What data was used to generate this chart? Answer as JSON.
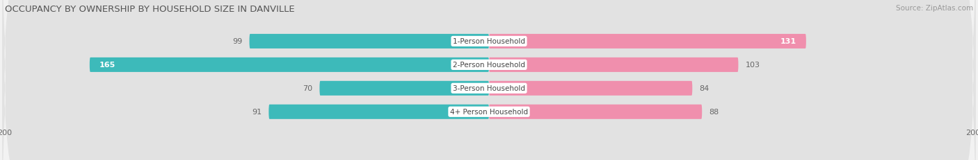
{
  "title": "OCCUPANCY BY OWNERSHIP BY HOUSEHOLD SIZE IN DANVILLE",
  "source": "Source: ZipAtlas.com",
  "categories": [
    "1-Person Household",
    "2-Person Household",
    "3-Person Household",
    "4+ Person Household"
  ],
  "owner_values": [
    99,
    165,
    70,
    91
  ],
  "renter_values": [
    131,
    103,
    84,
    88
  ],
  "owner_color": "#3DBABA",
  "renter_color": "#F08FAD",
  "background_color": "#f2f2f2",
  "bar_bg_color": "#e2e2e2",
  "max_val": 200,
  "title_fontsize": 9.5,
  "axis_fontsize": 8,
  "label_fontsize": 7.5,
  "bar_label_fontsize": 8,
  "legend_fontsize": 8,
  "source_fontsize": 7.5
}
